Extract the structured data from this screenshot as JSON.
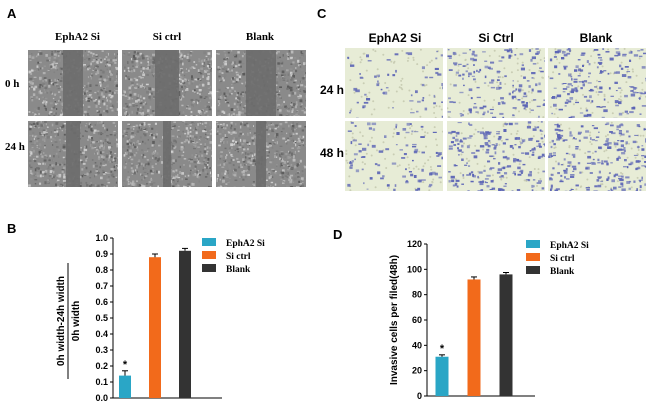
{
  "panels": {
    "a": {
      "letter": "A",
      "columns": [
        "EphA2 Si",
        "Si ctrl",
        "Blank"
      ],
      "rows": [
        "0 h",
        "24 h"
      ]
    },
    "c": {
      "letter": "C",
      "columns": [
        "EphA2 Si",
        "Si Ctrl",
        "Blank"
      ],
      "rows": [
        "24 h",
        "48 h"
      ]
    },
    "b": {
      "letter": "B"
    },
    "d": {
      "letter": "D"
    }
  },
  "colors": {
    "ephA2": "#2aa6c6",
    "sictrl": "#f26a1b",
    "blank": "#333333",
    "scratch_bg": "#8a8a8a",
    "transwell_bg": "#e7ecd6",
    "stain": "#5a63b5"
  },
  "chart_data": [
    {
      "type": "bar",
      "panel": "B",
      "categories": [
        "EphA2 Si",
        "Si ctrl",
        "Blank"
      ],
      "series": [
        {
          "name": "EphA2 Si",
          "value": 0.14,
          "error": 0.03
        },
        {
          "name": "Si ctrl",
          "value": 0.88,
          "error": 0.02
        },
        {
          "name": "Blank",
          "value": 0.92,
          "error": 0.015
        }
      ],
      "ylabel_line1": "0h width-24h width",
      "ylabel_line2": "0h width",
      "ylim": [
        0,
        1.0
      ],
      "yticks": [
        0,
        0.1,
        0.2,
        0.3,
        0.4,
        0.5,
        0.6,
        0.7,
        0.8,
        0.9,
        1.0
      ],
      "ytick_labels": [
        "0.0",
        "0.1",
        "0.2",
        "0.3",
        "0.4",
        "0.5",
        "0.6",
        "0.7",
        "0.8",
        "0.9",
        "1.0"
      ],
      "annotation": "*",
      "legend_placement": "top-right"
    },
    {
      "type": "bar",
      "panel": "D",
      "categories": [
        "EphA2 Si",
        "Si ctrl",
        "Blank"
      ],
      "series": [
        {
          "name": "EphA2 Si",
          "value": 31,
          "error": 1.5
        },
        {
          "name": "Si ctrl",
          "value": 92,
          "error": 2
        },
        {
          "name": "Blank",
          "value": 96,
          "error": 1.5
        }
      ],
      "ylabel": "Invasive cells per filed(48h)",
      "ylim": [
        0,
        120
      ],
      "yticks": [
        0,
        20,
        40,
        60,
        80,
        100,
        120
      ],
      "ytick_labels": [
        "0",
        "20",
        "40",
        "60",
        "80",
        "100",
        "120"
      ],
      "annotation": "*",
      "legend_placement": "top-right"
    }
  ]
}
